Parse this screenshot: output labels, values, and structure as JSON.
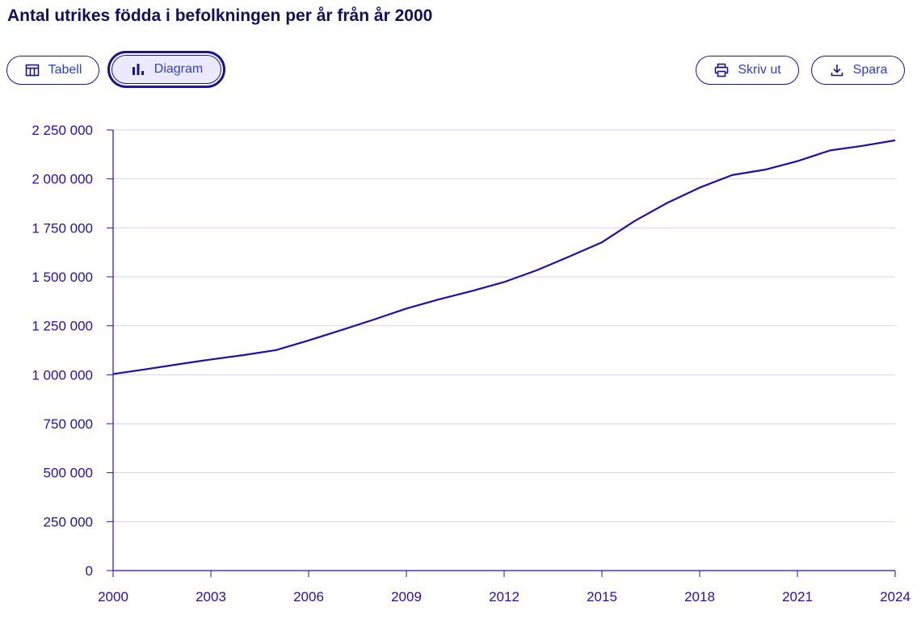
{
  "title": "Antal utrikes födda i befolkningen per år från år 2000",
  "toolbar": {
    "table": "Tabell",
    "chart": "Diagram",
    "print": "Skriv ut",
    "save": "Spara"
  },
  "colors": {
    "line": "#1f0fa8",
    "grid": "#d4d2f2",
    "axis": "#2112a8"
  },
  "chart_data": {
    "type": "line",
    "title": "Antal utrikes födda i befolkningen per år från år 2000",
    "xlabel": "",
    "ylabel": "",
    "x": [
      2000,
      2001,
      2002,
      2003,
      2004,
      2005,
      2006,
      2007,
      2008,
      2009,
      2010,
      2011,
      2012,
      2013,
      2014,
      2015,
      2016,
      2017,
      2018,
      2019,
      2020,
      2021,
      2022,
      2023,
      2024
    ],
    "series": [
      {
        "name": "Utrikes födda",
        "values": [
          1003798,
          1028008,
          1053463,
          1077975,
          1100262,
          1125790,
          1175200,
          1227770,
          1281581,
          1337965,
          1384929,
          1427296,
          1473256,
          1533493,
          1603551,
          1676264,
          1784497,
          1877050,
          1955569,
          2019733,
          2046991,
          2090503,
          2145357,
          2169000,
          2197000
        ]
      }
    ],
    "xlim": [
      2000,
      2024
    ],
    "ylim": [
      0,
      2250000
    ],
    "xticks": [
      "2000",
      "2003",
      "2006",
      "2009",
      "2012",
      "2015",
      "2018",
      "2021",
      "2024"
    ],
    "yticks": [
      "0",
      "250 000",
      "500 000",
      "750 000",
      "1 000 000",
      "1 250 000",
      "1 500 000",
      "1 750 000",
      "2 000 000",
      "2 250 000"
    ],
    "grid": true,
    "legend": "none"
  }
}
